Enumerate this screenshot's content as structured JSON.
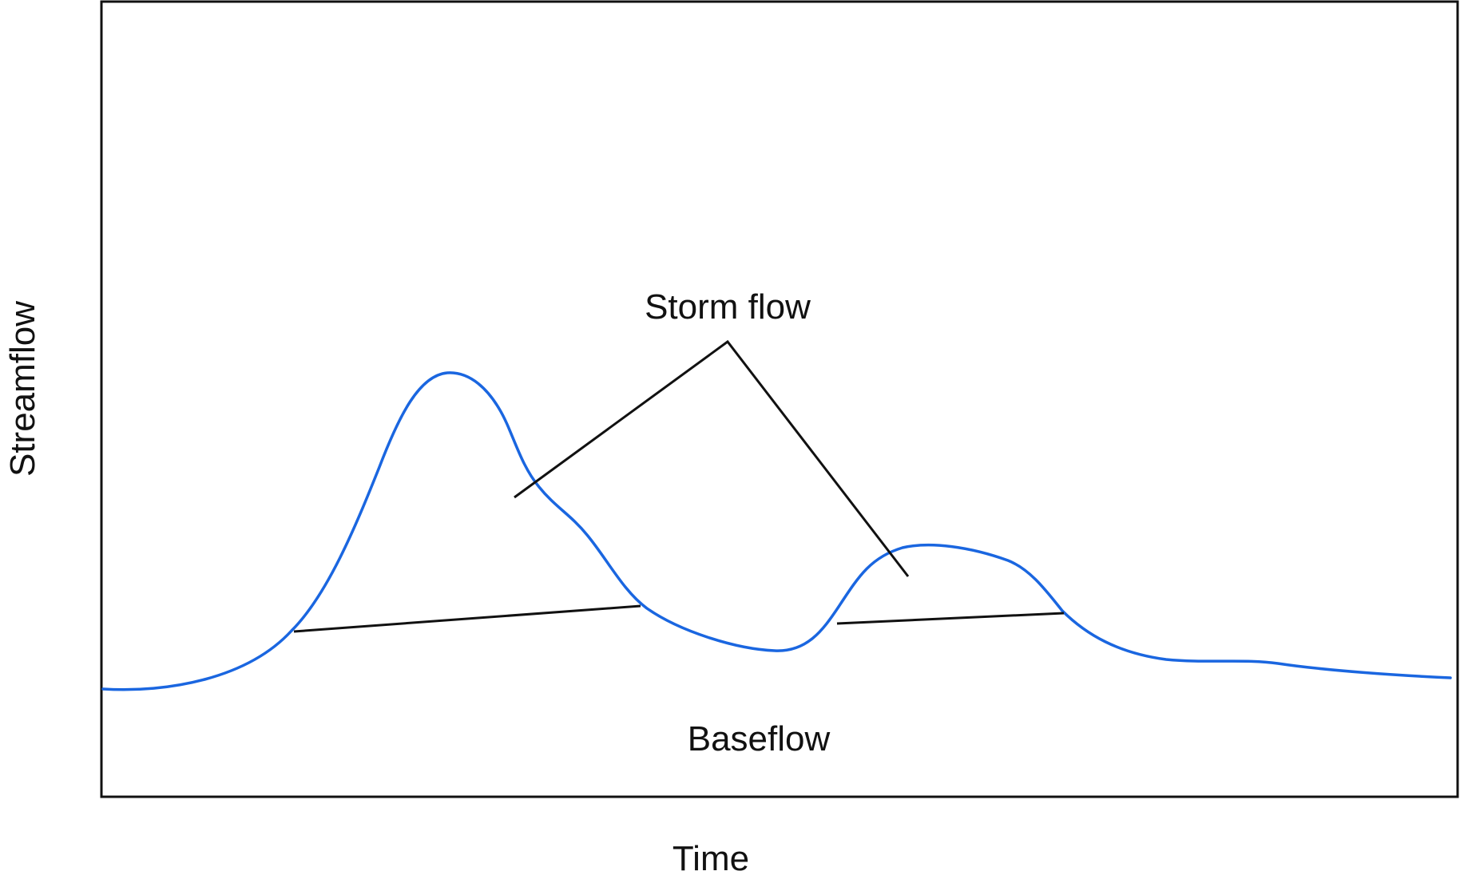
{
  "diagram": {
    "x_axis_label": "Time",
    "y_axis_label": "Streamflow",
    "annotations": {
      "storm_flow": "Storm flow",
      "baseflow": "Baseflow"
    },
    "colors": {
      "hydrograph": "#1a66e0",
      "lines": "#111111",
      "frame": "#111111"
    }
  }
}
